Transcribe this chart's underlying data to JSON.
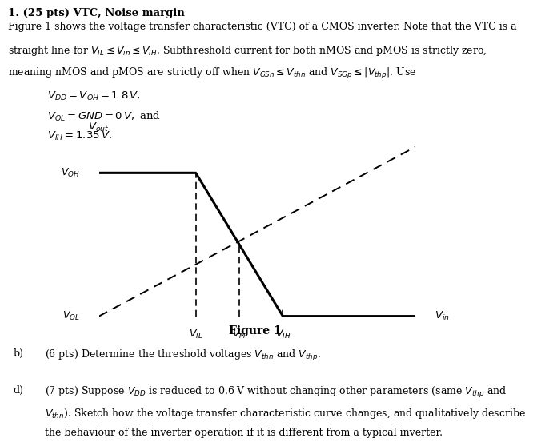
{
  "title": "1. (25 pts) VTC, Noise margin",
  "para_line1": "Figure 1 shows the voltage transfer characteristic (VTC) of a CMOS inverter. Note that the VTC is a",
  "para_line2": "straight line for $V_{IL} \\leq V_{in} \\leq V_{IH}$. Subthreshold current for both nMOS and pMOS is strictly zero,",
  "para_line3": "meaning nMOS and pMOS are strictly off when $V_{GSn} \\leq V_{thn}$ and $V_{SGp} \\leq |V_{thp}|$. Use",
  "eq1": "$V_{DD} = V_{OH} = 1.8\\,V,$",
  "eq2": "$V_{OL} = GND = 0\\,V,$ and",
  "eq3": "$V_{IH} = 1.35\\,V.$",
  "ylabel": "$V_{out}$",
  "xlabel": "$V_{in}$",
  "VOH_label": "$V_{OH}$",
  "VOL_label": "$V_{OL}$",
  "VIL_label": "$V_{IL}$",
  "VM_label": "$V_M$",
  "VIH_label": "$V_{IH}$",
  "fig_label": "Figure 1",
  "qb_letter": "b)",
  "qb_text": "(6 pts) Determine the threshold voltages $V_{thn}$ and $V_{thp}$.",
  "qd_letter": "d)",
  "qd_line1": "(7 pts) Suppose $V_{DD}$ is reduced to 0.6 V without changing other parameters (same $V_{thp}$ and",
  "qd_line2": "$V_{thn}$). Sketch how the voltage transfer characteristic curve changes, and qualitatively describe",
  "qd_line3": "the behaviour of the inverter operation if it is different from a typical inverter.",
  "VIL": 0.3,
  "VIH": 0.57,
  "VM": 0.435,
  "VOH": 0.83,
  "VOL": 0.0,
  "bg_color": "#ffffff",
  "font_size_title": 9.5,
  "font_size_body": 9.0,
  "font_size_eq": 9.5,
  "font_size_axis_label": 9.5,
  "font_size_graph_label": 9.0,
  "font_size_fig_label": 10.0
}
